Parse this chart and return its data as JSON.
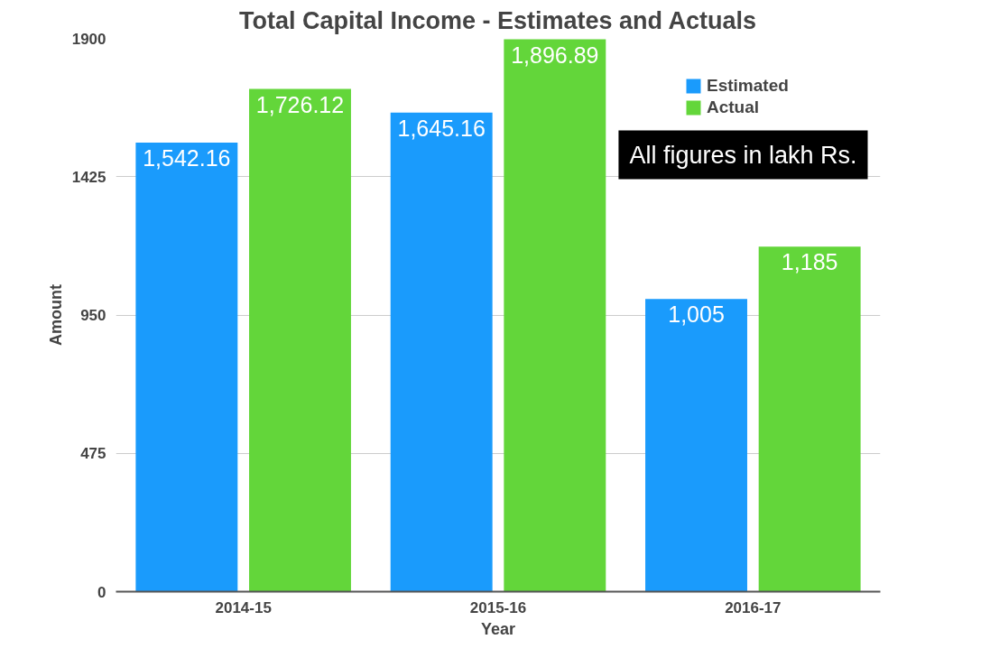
{
  "chart_data": {
    "type": "bar",
    "title": "Total Capital Income - Estimates and Actuals",
    "xlabel": "Year",
    "ylabel": "Amount",
    "categories": [
      "2014-15",
      "2015-16",
      "2016-17"
    ],
    "series": [
      {
        "name": "Estimated",
        "color": "#1a9bfc",
        "values": [
          1542.16,
          1645.16,
          1005
        ],
        "value_labels": [
          "1,542.16",
          "1,645.16",
          "1,005"
        ]
      },
      {
        "name": "Actual",
        "color": "#63d63a",
        "values": [
          1726.12,
          1896.89,
          1185
        ],
        "value_labels": [
          "1,726.12",
          "1,896.89",
          "1,185"
        ]
      }
    ],
    "ylim": [
      0,
      1900
    ],
    "yticks": [
      0,
      475,
      950,
      1425,
      1900
    ],
    "grid": "y",
    "legend": "top right",
    "annotations": [
      "All figures in lakh Rs."
    ]
  }
}
